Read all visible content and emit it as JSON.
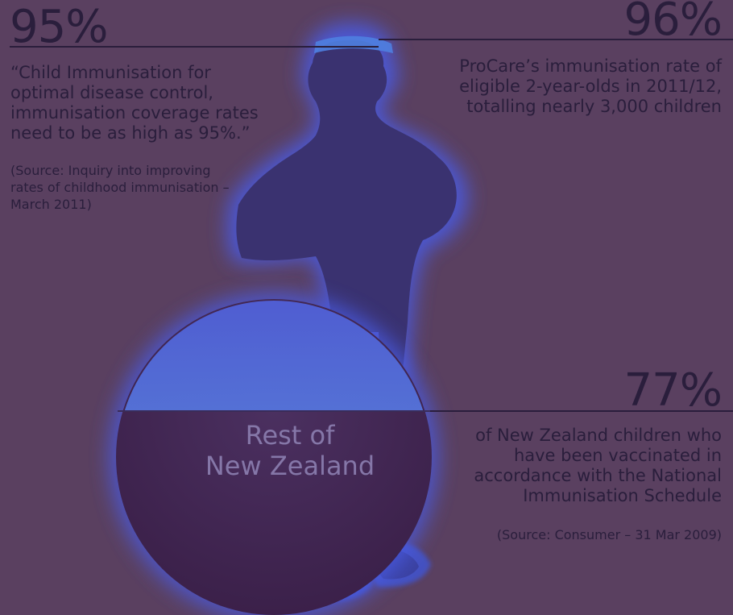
{
  "left_stat": {
    "value": "95%",
    "quote_lines": [
      "“Child Immunisation for",
      "optimal disease control,",
      "immunisation coverage rates",
      "need to be as high as 95%.”"
    ],
    "source_lines": [
      "(Source: Inquiry into improving",
      "rates of childhood immunisation –",
      "March 2011)"
    ]
  },
  "right_stat": {
    "value": "96%",
    "lines": [
      "ProCare’s immunisation rate of",
      "eligible 2-year-olds in 2011/12,",
      "totalling nearly 3,000 children"
    ]
  },
  "bottom_stat": {
    "value": "77%",
    "lines": [
      "of New Zealand children who",
      "have been vaccinated in",
      "accordance with the National",
      "Immunisation Schedule"
    ],
    "source": "(Source: Consumer – 31 Mar 2009)"
  },
  "ball": {
    "label_lines": [
      "Rest of",
      "New Zealand"
    ],
    "fill_level": 0.77
  },
  "child": {
    "fill_level": 0.96
  },
  "colors": {
    "background": "#5a4060",
    "text": "#2a1e3c",
    "glow": "#4a5ce6",
    "liquid": "#43284f",
    "ball_top": "#5aa0e6"
  }
}
